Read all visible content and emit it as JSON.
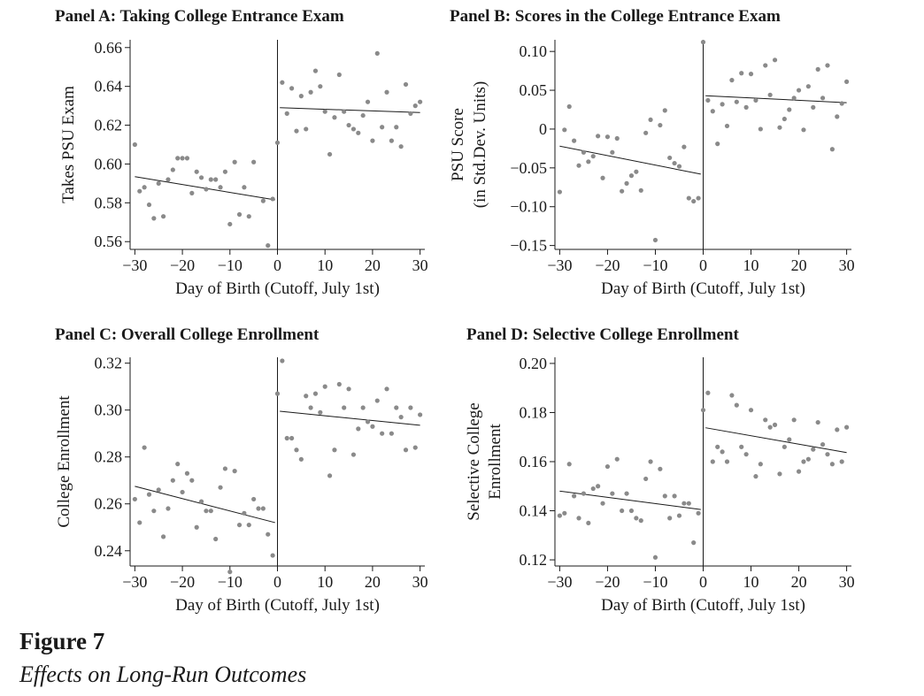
{
  "figure": {
    "number": "Figure 7",
    "caption": "Effects on Long-Run Outcomes"
  },
  "colors": {
    "dots": "#8a8a8a",
    "lines": "#1a1a1a"
  },
  "chart_data": [
    {
      "type": "scatter",
      "title": "Panel A: Taking College Entrance Exam",
      "xlabel": "Day of Birth (Cutoff, July 1st)",
      "ylabel": [
        "Takes PSU Exam"
      ],
      "xlim": [
        -31,
        31
      ],
      "ylim": [
        0.556,
        0.664
      ],
      "xticks": [
        -30,
        -20,
        -10,
        0,
        10,
        20,
        30
      ],
      "xtick_labels": [
        "−30",
        "−20",
        "−10",
        "0",
        "10",
        "20",
        "30"
      ],
      "yticks": [
        0.56,
        0.58,
        0.6,
        0.62,
        0.64,
        0.66
      ],
      "ytick_labels": [
        "0.56",
        "0.58",
        "0.60",
        "0.62",
        "0.64",
        "0.66"
      ],
      "cutoff": 0,
      "fit_left": [
        [
          -30,
          0.5935
        ],
        [
          -0.5,
          0.5815
        ]
      ],
      "fit_right": [
        [
          0.5,
          0.629
        ],
        [
          30,
          0.6265
        ]
      ],
      "points": [
        [
          -30,
          0.61
        ],
        [
          -29,
          0.586
        ],
        [
          -28,
          0.588
        ],
        [
          -27,
          0.579
        ],
        [
          -26,
          0.572
        ],
        [
          -25,
          0.59
        ],
        [
          -24,
          0.573
        ],
        [
          -23,
          0.592
        ],
        [
          -22,
          0.597
        ],
        [
          -21,
          0.603
        ],
        [
          -20,
          0.603
        ],
        [
          -19,
          0.603
        ],
        [
          -18,
          0.585
        ],
        [
          -17,
          0.596
        ],
        [
          -16,
          0.593
        ],
        [
          -15,
          0.587
        ],
        [
          -14,
          0.592
        ],
        [
          -13,
          0.592
        ],
        [
          -12,
          0.588
        ],
        [
          -11,
          0.596
        ],
        [
          -10,
          0.569
        ],
        [
          -9,
          0.601
        ],
        [
          -8,
          0.574
        ],
        [
          -7,
          0.588
        ],
        [
          -6,
          0.573
        ],
        [
          -5,
          0.601
        ],
        [
          -3,
          0.581
        ],
        [
          -2,
          0.558
        ],
        [
          -1,
          0.582
        ],
        [
          0,
          0.611
        ],
        [
          1,
          0.642
        ],
        [
          2,
          0.626
        ],
        [
          3,
          0.639
        ],
        [
          4,
          0.617
        ],
        [
          5,
          0.635
        ],
        [
          6,
          0.618
        ],
        [
          7,
          0.637
        ],
        [
          8,
          0.648
        ],
        [
          9,
          0.64
        ],
        [
          10,
          0.627
        ],
        [
          11,
          0.605
        ],
        [
          12,
          0.624
        ],
        [
          13,
          0.646
        ],
        [
          14,
          0.627
        ],
        [
          15,
          0.62
        ],
        [
          16,
          0.618
        ],
        [
          17,
          0.616
        ],
        [
          18,
          0.625
        ],
        [
          19,
          0.632
        ],
        [
          20,
          0.612
        ],
        [
          21,
          0.657
        ],
        [
          22,
          0.619
        ],
        [
          23,
          0.637
        ],
        [
          24,
          0.612
        ],
        [
          25,
          0.619
        ],
        [
          26,
          0.609
        ],
        [
          27,
          0.641
        ],
        [
          28,
          0.626
        ],
        [
          29,
          0.63
        ],
        [
          30,
          0.632
        ]
      ]
    },
    {
      "type": "scatter",
      "title": "Panel B: Scores in the College Entrance Exam",
      "xlabel": "Day of Birth (Cutoff, July 1st)",
      "ylabel": [
        "PSU Score",
        "(in Std.Dev. Units)"
      ],
      "xlim": [
        -31,
        31
      ],
      "ylim": [
        -0.155,
        0.115
      ],
      "xticks": [
        -30,
        -20,
        -10,
        0,
        10,
        20,
        30
      ],
      "xtick_labels": [
        "−30",
        "−20",
        "−10",
        "0",
        "10",
        "20",
        "30"
      ],
      "yticks": [
        -0.15,
        -0.1,
        -0.05,
        0,
        0.05,
        0.1
      ],
      "ytick_labels": [
        "−0.15",
        "−0.10",
        "−0.05",
        "0",
        "0.05",
        "0.10"
      ],
      "cutoff": 0,
      "fit_left": [
        [
          -30,
          -0.022
        ],
        [
          -0.5,
          -0.058
        ]
      ],
      "fit_right": [
        [
          0.5,
          0.043
        ],
        [
          30,
          0.034
        ]
      ],
      "points": [
        [
          -30,
          -0.081
        ],
        [
          -29,
          -0.001
        ],
        [
          -28,
          0.029
        ],
        [
          -27,
          -0.015
        ],
        [
          -26,
          -0.047
        ],
        [
          -25,
          -0.03
        ],
        [
          -24,
          -0.042
        ],
        [
          -23,
          -0.035
        ],
        [
          -22,
          -0.009
        ],
        [
          -21,
          -0.063
        ],
        [
          -20,
          -0.01
        ],
        [
          -19,
          -0.03
        ],
        [
          -18,
          -0.012
        ],
        [
          -17,
          -0.08
        ],
        [
          -16,
          -0.07
        ],
        [
          -15,
          -0.06
        ],
        [
          -14,
          -0.055
        ],
        [
          -13,
          -0.079
        ],
        [
          -12,
          -0.005
        ],
        [
          -11,
          0.012
        ],
        [
          -10,
          -0.143
        ],
        [
          -9,
          0.005
        ],
        [
          -8,
          0.024
        ],
        [
          -7,
          -0.037
        ],
        [
          -6,
          -0.044
        ],
        [
          -5,
          -0.048
        ],
        [
          -4,
          -0.023
        ],
        [
          -3,
          -0.089
        ],
        [
          -2,
          -0.093
        ],
        [
          -1,
          -0.089
        ],
        [
          0,
          0.112
        ],
        [
          1,
          0.037
        ],
        [
          2,
          0.023
        ],
        [
          3,
          -0.019
        ],
        [
          4,
          0.032
        ],
        [
          5,
          0.004
        ],
        [
          6,
          0.063
        ],
        [
          7,
          0.035
        ],
        [
          8,
          0.072
        ],
        [
          9,
          0.028
        ],
        [
          10,
          0.071
        ],
        [
          11,
          0.037
        ],
        [
          12,
          0.0
        ],
        [
          13,
          0.082
        ],
        [
          14,
          0.044
        ],
        [
          15,
          0.089
        ],
        [
          16,
          0.002
        ],
        [
          17,
          0.013
        ],
        [
          18,
          0.025
        ],
        [
          19,
          0.04
        ],
        [
          20,
          0.05
        ],
        [
          21,
          -0.001
        ],
        [
          22,
          0.055
        ],
        [
          23,
          0.028
        ],
        [
          24,
          0.077
        ],
        [
          25,
          0.04
        ],
        [
          26,
          0.082
        ],
        [
          27,
          -0.026
        ],
        [
          28,
          0.016
        ],
        [
          29,
          0.033
        ],
        [
          30,
          0.061
        ]
      ]
    },
    {
      "type": "scatter",
      "title": "Panel C: Overall College Enrollment",
      "xlabel": "Day of Birth (Cutoff, July 1st)",
      "ylabel": [
        "College Enrollment"
      ],
      "xlim": [
        -31,
        31
      ],
      "ylim": [
        0.2335,
        0.3225
      ],
      "xticks": [
        -30,
        -20,
        -10,
        0,
        10,
        20,
        30
      ],
      "xtick_labels": [
        "−30",
        "−20",
        "−10",
        "0",
        "10",
        "20",
        "30"
      ],
      "yticks": [
        0.24,
        0.26,
        0.28,
        0.3,
        0.32
      ],
      "ytick_labels": [
        "0.24",
        "0.26",
        "0.28",
        "0.30",
        "0.32"
      ],
      "cutoff": 0,
      "fit_left": [
        [
          -30,
          0.2675
        ],
        [
          -0.5,
          0.252
        ]
      ],
      "fit_right": [
        [
          0.5,
          0.2995
        ],
        [
          30,
          0.2935
        ]
      ],
      "points": [
        [
          -30,
          0.262
        ],
        [
          -29,
          0.252
        ],
        [
          -28,
          0.284
        ],
        [
          -27,
          0.264
        ],
        [
          -26,
          0.257
        ],
        [
          -25,
          0.266
        ],
        [
          -24,
          0.246
        ],
        [
          -23,
          0.258
        ],
        [
          -22,
          0.27
        ],
        [
          -21,
          0.277
        ],
        [
          -20,
          0.265
        ],
        [
          -19,
          0.273
        ],
        [
          -18,
          0.27
        ],
        [
          -17,
          0.25
        ],
        [
          -16,
          0.261
        ],
        [
          -15,
          0.257
        ],
        [
          -14,
          0.257
        ],
        [
          -13,
          0.245
        ],
        [
          -12,
          0.267
        ],
        [
          -11,
          0.275
        ],
        [
          -10,
          0.231
        ],
        [
          -9,
          0.274
        ],
        [
          -8,
          0.251
        ],
        [
          -7,
          0.256
        ],
        [
          -6,
          0.251
        ],
        [
          -5,
          0.262
        ],
        [
          -4,
          0.258
        ],
        [
          -3,
          0.258
        ],
        [
          -2,
          0.247
        ],
        [
          -1,
          0.238
        ],
        [
          0,
          0.307
        ],
        [
          1,
          0.321
        ],
        [
          2,
          0.288
        ],
        [
          3,
          0.288
        ],
        [
          4,
          0.283
        ],
        [
          5,
          0.279
        ],
        [
          6,
          0.306
        ],
        [
          7,
          0.301
        ],
        [
          8,
          0.307
        ],
        [
          9,
          0.299
        ],
        [
          10,
          0.31
        ],
        [
          11,
          0.272
        ],
        [
          12,
          0.283
        ],
        [
          13,
          0.311
        ],
        [
          14,
          0.301
        ],
        [
          15,
          0.309
        ],
        [
          16,
          0.281
        ],
        [
          17,
          0.292
        ],
        [
          18,
          0.301
        ],
        [
          19,
          0.295
        ],
        [
          20,
          0.293
        ],
        [
          21,
          0.304
        ],
        [
          22,
          0.29
        ],
        [
          23,
          0.309
        ],
        [
          24,
          0.29
        ],
        [
          25,
          0.301
        ],
        [
          26,
          0.297
        ],
        [
          27,
          0.283
        ],
        [
          28,
          0.301
        ],
        [
          29,
          0.284
        ],
        [
          30,
          0.298
        ]
      ]
    },
    {
      "type": "scatter",
      "title": "Panel D: Selective College Enrollment",
      "xlabel": "Day of Birth (Cutoff, July 1st)",
      "ylabel": [
        "Selective College",
        "Enrollment"
      ],
      "xlim": [
        -31,
        31
      ],
      "ylim": [
        0.1175,
        0.2025
      ],
      "xticks": [
        -30,
        -20,
        -10,
        0,
        10,
        20,
        30
      ],
      "xtick_labels": [
        "−30",
        "−20",
        "−10",
        "0",
        "10",
        "20",
        "30"
      ],
      "yticks": [
        0.12,
        0.14,
        0.16,
        0.18,
        0.2
      ],
      "ytick_labels": [
        "0.12",
        "0.14",
        "0.16",
        "0.18",
        "0.20"
      ],
      "cutoff": 0,
      "fit_left": [
        [
          -30,
          0.148
        ],
        [
          -0.5,
          0.1405
        ]
      ],
      "fit_right": [
        [
          0.5,
          0.1738
        ],
        [
          30,
          0.1637
        ]
      ],
      "points": [
        [
          -30,
          0.138
        ],
        [
          -29,
          0.139
        ],
        [
          -28,
          0.159
        ],
        [
          -27,
          0.146
        ],
        [
          -26,
          0.137
        ],
        [
          -25,
          0.147
        ],
        [
          -24,
          0.135
        ],
        [
          -23,
          0.149
        ],
        [
          -22,
          0.15
        ],
        [
          -21,
          0.143
        ],
        [
          -20,
          0.158
        ],
        [
          -19,
          0.147
        ],
        [
          -18,
          0.161
        ],
        [
          -17,
          0.14
        ],
        [
          -16,
          0.147
        ],
        [
          -15,
          0.14
        ],
        [
          -14,
          0.137
        ],
        [
          -13,
          0.136
        ],
        [
          -12,
          0.153
        ],
        [
          -11,
          0.16
        ],
        [
          -10,
          0.121
        ],
        [
          -9,
          0.157
        ],
        [
          -8,
          0.146
        ],
        [
          -7,
          0.137
        ],
        [
          -6,
          0.146
        ],
        [
          -5,
          0.138
        ],
        [
          -4,
          0.143
        ],
        [
          -3,
          0.143
        ],
        [
          -2,
          0.127
        ],
        [
          -1,
          0.139
        ],
        [
          0,
          0.181
        ],
        [
          1,
          0.188
        ],
        [
          2,
          0.16
        ],
        [
          3,
          0.166
        ],
        [
          4,
          0.164
        ],
        [
          5,
          0.16
        ],
        [
          6,
          0.187
        ],
        [
          7,
          0.183
        ],
        [
          8,
          0.166
        ],
        [
          9,
          0.163
        ],
        [
          10,
          0.181
        ],
        [
          11,
          0.154
        ],
        [
          12,
          0.159
        ],
        [
          13,
          0.177
        ],
        [
          14,
          0.174
        ],
        [
          15,
          0.175
        ],
        [
          16,
          0.155
        ],
        [
          17,
          0.166
        ],
        [
          18,
          0.169
        ],
        [
          19,
          0.177
        ],
        [
          20,
          0.156
        ],
        [
          21,
          0.16
        ],
        [
          22,
          0.161
        ],
        [
          23,
          0.165
        ],
        [
          24,
          0.176
        ],
        [
          25,
          0.167
        ],
        [
          26,
          0.163
        ],
        [
          27,
          0.159
        ],
        [
          28,
          0.173
        ],
        [
          29,
          0.16
        ],
        [
          30,
          0.174
        ]
      ]
    }
  ]
}
